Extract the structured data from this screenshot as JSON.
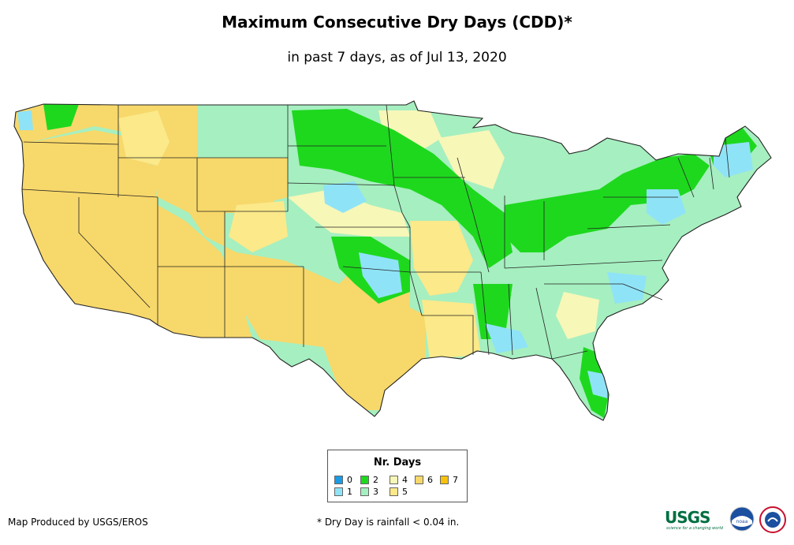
{
  "title": "Maximum Consecutive Dry Days (CDD)*",
  "subtitle": "in past 7 days, as of Jul 13, 2020",
  "legend": {
    "title": "Nr. Days",
    "items": [
      {
        "label": "0",
        "color": "#1a9be6"
      },
      {
        "label": "1",
        "color": "#8fe3f7"
      },
      {
        "label": "2",
        "color": "#1ed81e"
      },
      {
        "label": "3",
        "color": "#a6efc0"
      },
      {
        "label": "4",
        "color": "#f7f7b8"
      },
      {
        "label": "5",
        "color": "#fbe98a"
      },
      {
        "label": "6",
        "color": "#f7d86a"
      },
      {
        "label": "7",
        "color": "#f7c20c"
      }
    ]
  },
  "credit": "Map Produced by USGS/EROS",
  "footnote": "* Dry Day is rainfall < 0.04 in.",
  "logos": {
    "usgs": "USGS",
    "usgs_tagline": "science for a changing world",
    "noaa": "noaa"
  }
}
